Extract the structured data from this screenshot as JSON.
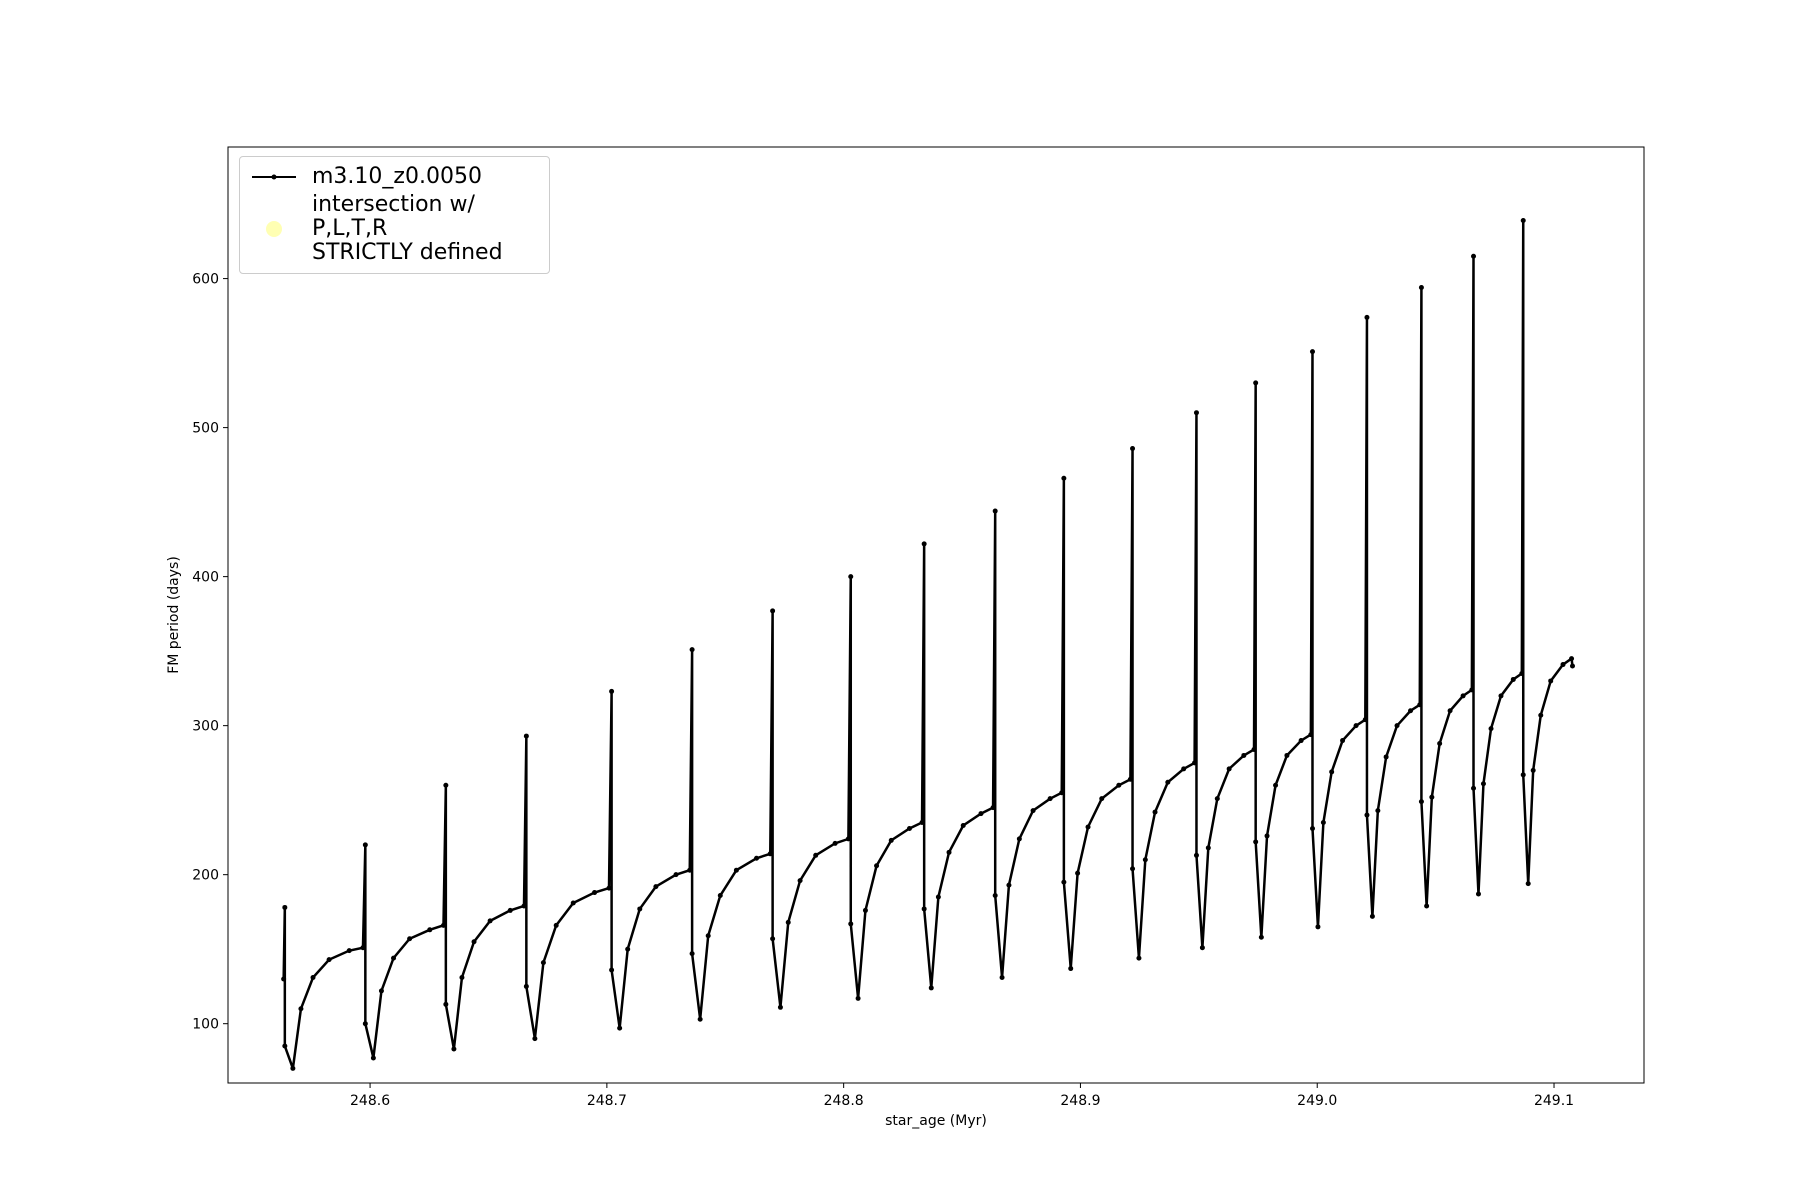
{
  "chart_data": {
    "type": "line",
    "xlabel": "star_age (Myr)",
    "ylabel": "FM period (days)",
    "xlim": [
      248.54,
      249.138
    ],
    "ylim": [
      60.2,
      688.3
    ],
    "xticks": [
      248.6,
      248.7,
      248.8,
      248.9,
      {
        "value": 249,
        "label": "249.0"
      },
      249.1
    ],
    "yticks": [
      100,
      200,
      300,
      400,
      500,
      600
    ],
    "legend": "upper left",
    "x": [
      248.5635,
      248.564,
      248.564,
      248.5674,
      248.5708,
      248.5759,
      248.5827,
      248.5912,
      248.597,
      248.598,
      248.598,
      248.6014,
      248.6048,
      248.6099,
      248.6167,
      248.6252,
      248.631,
      248.632,
      248.632,
      248.6354,
      248.6388,
      248.6439,
      248.6507,
      248.6592,
      248.665,
      248.666,
      248.666,
      248.6696,
      248.6732,
      248.6786,
      248.6858,
      248.6948,
      248.7009,
      248.702,
      248.702,
      248.7054,
      248.7088,
      248.7139,
      248.7207,
      248.7292,
      248.735,
      248.736,
      248.736,
      248.7394,
      248.7428,
      248.7479,
      248.7547,
      248.7632,
      248.769,
      248.77,
      248.77,
      248.7733,
      248.7766,
      248.7816,
      248.7882,
      248.7964,
      248.802,
      248.803,
      248.803,
      248.8061,
      248.8092,
      248.8139,
      248.8201,
      248.8278,
      248.8331,
      248.834,
      248.834,
      248.837,
      248.84,
      248.8445,
      248.8505,
      248.858,
      248.8631,
      248.864,
      248.864,
      248.8669,
      248.8698,
      248.8742,
      248.88,
      248.8872,
      248.8921,
      248.893,
      248.893,
      248.8959,
      248.8988,
      248.9032,
      248.909,
      248.9162,
      248.9211,
      248.922,
      248.922,
      248.9247,
      248.9274,
      248.9315,
      248.9369,
      248.9436,
      248.9482,
      248.949,
      248.949,
      248.9515,
      248.954,
      248.9578,
      248.9628,
      248.969,
      248.9733,
      248.974,
      248.974,
      248.9764,
      248.9788,
      248.9824,
      248.9872,
      248.9932,
      248.9973,
      248.998,
      248.998,
      249.0003,
      249.0026,
      249.0061,
      249.0107,
      249.0164,
      249.0203,
      249.021,
      249.021,
      249.0233,
      249.0256,
      249.0291,
      249.0337,
      249.0394,
      249.0433,
      249.044,
      249.044,
      249.0462,
      249.0484,
      249.0517,
      249.0561,
      249.0616,
      249.0653,
      249.066,
      249.066,
      249.0681,
      249.0702,
      249.0734,
      249.0776,
      249.0828,
      249.0864,
      249.087,
      249.087,
      249.0891,
      249.0912,
      249.0944,
      249.0986,
      249.1038,
      249.1074,
      249.1078
    ],
    "series": [
      {
        "name": "m3.10_z0.0050",
        "color": "#000000",
        "values": [
          130,
          178,
          85,
          70,
          110,
          131,
          143,
          149,
          151,
          220,
          100,
          77,
          122,
          144,
          157,
          163,
          166,
          260,
          113,
          83,
          131,
          155,
          169,
          176,
          179,
          293,
          125,
          90,
          141,
          166,
          181,
          188,
          191,
          323,
          136,
          97,
          150,
          177,
          192,
          200,
          203,
          351,
          147,
          103,
          159,
          186,
          203,
          211,
          214,
          377,
          157,
          111,
          168,
          196,
          213,
          221,
          224,
          400,
          167,
          117,
          176,
          206,
          223,
          231,
          235,
          422,
          177,
          124,
          185,
          215,
          233,
          241,
          245,
          444,
          186,
          131,
          193,
          224,
          243,
          251,
          255,
          466,
          195,
          137,
          201,
          232,
          251,
          260,
          264,
          486,
          204,
          144,
          210,
          242,
          262,
          271,
          275,
          510,
          213,
          151,
          218,
          251,
          271,
          280,
          284,
          530,
          222,
          158,
          226,
          260,
          280,
          290,
          294,
          551,
          231,
          165,
          235,
          269,
          290,
          300,
          304,
          574,
          240,
          172,
          243,
          279,
          300,
          310,
          314,
          594,
          249,
          179,
          252,
          288,
          310,
          320,
          324,
          615,
          258,
          187,
          261,
          298,
          320,
          331,
          335,
          639,
          267,
          194,
          270,
          307,
          330,
          341,
          345,
          340
        ]
      },
      {
        "name": "intersection w/ P,L,T,R\nSTRICTLY defined",
        "color": "#ffffb3",
        "type": "scatter"
      }
    ]
  }
}
